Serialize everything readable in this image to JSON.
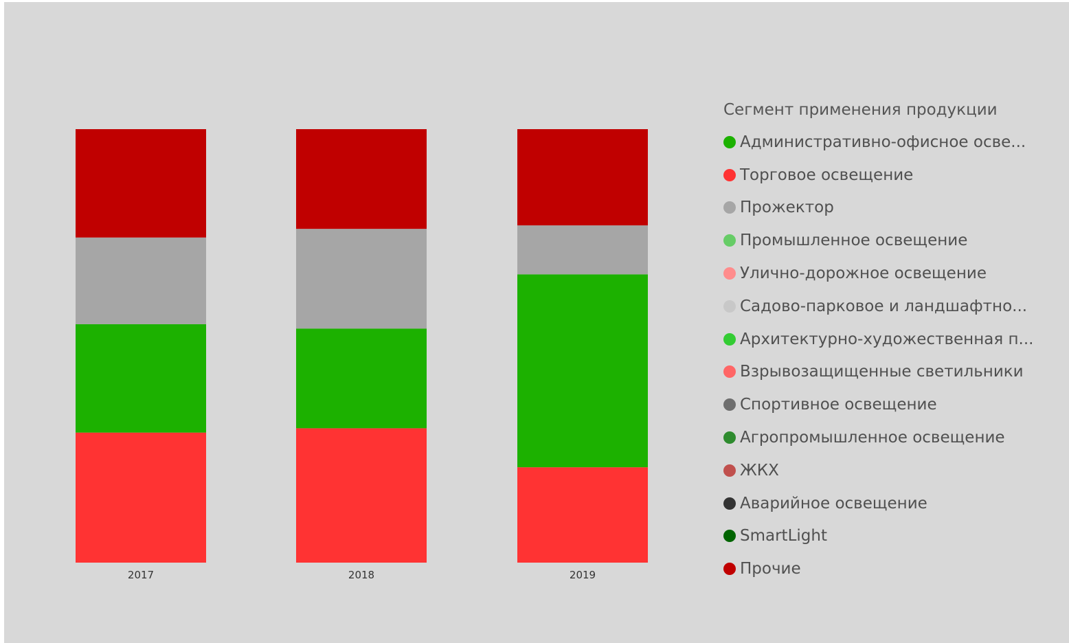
{
  "chart_data": {
    "type": "bar",
    "stacked": true,
    "normalized": true,
    "categories": [
      "2017",
      "2018",
      "2019"
    ],
    "legend_title": "Сегмент применения продукции",
    "legend_placement": "right",
    "ylim": [
      0,
      100
    ],
    "series": [
      {
        "name": "Административно-офисное осве...",
        "color": "#1cb100",
        "values": [
          25,
          23,
          44.5
        ]
      },
      {
        "name": "Торговое освещение",
        "color": "#ff3333",
        "values": [
          30,
          31,
          22
        ]
      },
      {
        "name": "Прожектор",
        "color": "#a6a6a6",
        "values": [
          20,
          23,
          11.3
        ]
      },
      {
        "name": "Промышленное освещение",
        "color": "#66cc66",
        "values": [
          0,
          0,
          0
        ]
      },
      {
        "name": "Улично-дорожное освещение",
        "color": "#ff8c8c",
        "values": [
          0,
          0,
          0
        ]
      },
      {
        "name": "Садово-парковое и ландшафтно...",
        "color": "#c8c8c8",
        "values": [
          0,
          0,
          0
        ]
      },
      {
        "name": "Архитектурно-художественная п...",
        "color": "#33cc33",
        "values": [
          0,
          0,
          0
        ]
      },
      {
        "name": "Взрывозащищенные светильники",
        "color": "#ff6666",
        "values": [
          0,
          0,
          0
        ]
      },
      {
        "name": "Спортивное освещение",
        "color": "#6e6e6e",
        "values": [
          0,
          0,
          0
        ]
      },
      {
        "name": "Агропромышленное освещение",
        "color": "#2e8b2e",
        "values": [
          0,
          0,
          0
        ]
      },
      {
        "name": "ЖКХ",
        "color": "#c0504d",
        "values": [
          0,
          0,
          0
        ]
      },
      {
        "name": "Аварийное освещение",
        "color": "#333333",
        "values": [
          0,
          0,
          0
        ]
      },
      {
        "name": "SmartLight",
        "color": "#006400",
        "values": [
          0,
          0,
          0
        ]
      },
      {
        "name": "Прочие",
        "color": "#c00000",
        "values": [
          25,
          23,
          22.2
        ]
      }
    ],
    "stack_order": [
      1,
      0,
      2,
      13
    ]
  }
}
